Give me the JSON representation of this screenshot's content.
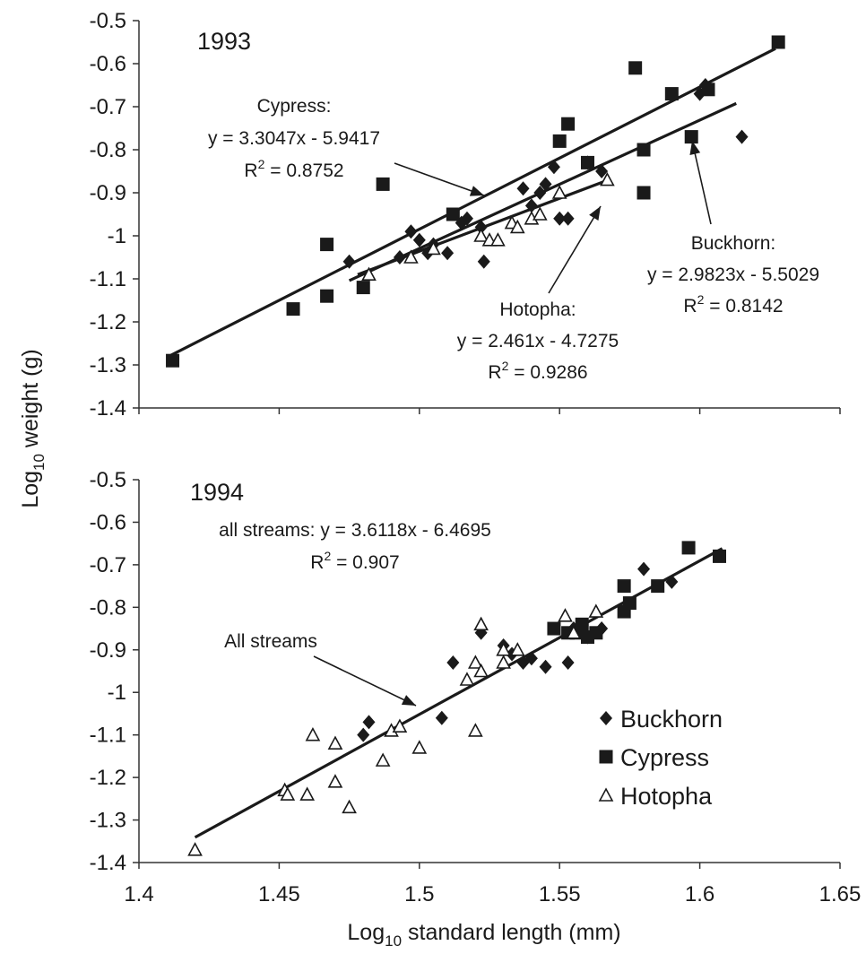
{
  "chart_data": {
    "type": "scatter",
    "ylabel": {
      "base": "Log",
      "sub": "10",
      "rest": " weight (g)"
    },
    "xlabel": {
      "base": "Log",
      "sub": "10",
      "rest": " standard length (mm)"
    },
    "xlim": [
      1.4,
      1.65
    ],
    "xticks": [
      "1.4",
      "1.45",
      "1.5",
      "1.55",
      "1.6",
      "1.65"
    ],
    "ylim": [
      -1.4,
      -0.5
    ],
    "yticks": [
      "-0.5",
      "-0.6",
      "-0.7",
      "-0.8",
      "-0.9",
      "-1",
      "-1.1",
      "-1.2",
      "-1.3",
      "-1.4"
    ],
    "legend": {
      "placement": "bottom-right of lower panel",
      "entries": [
        {
          "name": "Buckhorn",
          "marker": "diamond"
        },
        {
          "name": "Cypress",
          "marker": "square"
        },
        {
          "name": "Hotopha",
          "marker": "triangle-open"
        }
      ]
    },
    "panels": [
      {
        "title": "1993",
        "series": [
          {
            "name": "Buckhorn",
            "marker": "diamond",
            "points": [
              [
                1.475,
                -1.06
              ],
              [
                1.497,
                -0.99
              ],
              [
                1.493,
                -1.05
              ],
              [
                1.5,
                -1.01
              ],
              [
                1.503,
                -1.04
              ],
              [
                1.505,
                -1.02
              ],
              [
                1.51,
                -1.04
              ],
              [
                1.515,
                -0.97
              ],
              [
                1.517,
                -0.96
              ],
              [
                1.522,
                -0.98
              ],
              [
                1.523,
                -1.06
              ],
              [
                1.537,
                -0.89
              ],
              [
                1.54,
                -0.93
              ],
              [
                1.543,
                -0.9
              ],
              [
                1.545,
                -0.88
              ],
              [
                1.548,
                -0.84
              ],
              [
                1.55,
                -0.96
              ],
              [
                1.553,
                -0.96
              ],
              [
                1.56,
                -0.83
              ],
              [
                1.565,
                -0.85
              ],
              [
                1.6,
                -0.67
              ],
              [
                1.602,
                -0.65
              ],
              [
                1.615,
                -0.77
              ]
            ]
          },
          {
            "name": "Cypress",
            "marker": "square",
            "points": [
              [
                1.412,
                -1.29
              ],
              [
                1.455,
                -1.17
              ],
              [
                1.467,
                -1.02
              ],
              [
                1.467,
                -1.14
              ],
              [
                1.48,
                -1.12
              ],
              [
                1.487,
                -0.88
              ],
              [
                1.512,
                -0.95
              ],
              [
                1.55,
                -0.78
              ],
              [
                1.553,
                -0.74
              ],
              [
                1.56,
                -0.83
              ],
              [
                1.577,
                -0.61
              ],
              [
                1.58,
                -0.8
              ],
              [
                1.58,
                -0.9
              ],
              [
                1.59,
                -0.67
              ],
              [
                1.597,
                -0.77
              ],
              [
                1.603,
                -0.66
              ],
              [
                1.628,
                -0.55
              ]
            ]
          },
          {
            "name": "Hotopha",
            "marker": "triangle-open",
            "points": [
              [
                1.482,
                -1.09
              ],
              [
                1.497,
                -1.05
              ],
              [
                1.505,
                -1.03
              ],
              [
                1.522,
                -1.0
              ],
              [
                1.525,
                -1.01
              ],
              [
                1.528,
                -1.01
              ],
              [
                1.533,
                -0.97
              ],
              [
                1.535,
                -0.98
              ],
              [
                1.54,
                -0.96
              ],
              [
                1.543,
                -0.95
              ],
              [
                1.55,
                -0.9
              ],
              [
                1.567,
                -0.87
              ]
            ]
          }
        ],
        "fits": [
          {
            "name": "Cypress",
            "slope": 3.3047,
            "intercept": -5.9417,
            "x": [
              1.41,
              1.627
            ]
          },
          {
            "name": "Buckhorn",
            "slope": 2.9823,
            "intercept": -5.5029,
            "x": [
              1.475,
              1.613
            ]
          },
          {
            "name": "Hotopha",
            "slope": 2.461,
            "intercept": -4.7275,
            "x": [
              1.478,
              1.568
            ]
          }
        ],
        "annotations": [
          {
            "lines": [
              {
                "text": "Cypress:"
              },
              {
                "text": "y = 3.3047x - 5.9417"
              },
              {
                "text": "R",
                "sup": "2",
                "after": " = 0.8752"
              }
            ]
          },
          {
            "lines": [
              {
                "text": "Buckhorn:"
              },
              {
                "text": "y = 2.9823x - 5.5029"
              },
              {
                "text": "R",
                "sup": "2",
                "after": " = 0.8142"
              }
            ]
          },
          {
            "lines": [
              {
                "text": "Hotopha:"
              },
              {
                "text": "y = 2.461x - 4.7275"
              },
              {
                "text": "R",
                "sup": "2",
                "after": " = 0.9286"
              }
            ]
          }
        ]
      },
      {
        "title": "1994",
        "series": [
          {
            "name": "Buckhorn",
            "marker": "diamond",
            "points": [
              [
                1.48,
                -1.1
              ],
              [
                1.482,
                -1.07
              ],
              [
                1.508,
                -1.06
              ],
              [
                1.512,
                -0.93
              ],
              [
                1.522,
                -0.86
              ],
              [
                1.53,
                -0.89
              ],
              [
                1.533,
                -0.91
              ],
              [
                1.537,
                -0.93
              ],
              [
                1.54,
                -0.92
              ],
              [
                1.545,
                -0.94
              ],
              [
                1.553,
                -0.93
              ],
              [
                1.555,
                -0.85
              ],
              [
                1.56,
                -0.87
              ],
              [
                1.565,
                -0.85
              ],
              [
                1.58,
                -0.71
              ],
              [
                1.59,
                -0.74
              ]
            ]
          },
          {
            "name": "Cypress",
            "marker": "square",
            "points": [
              [
                1.548,
                -0.85
              ],
              [
                1.553,
                -0.86
              ],
              [
                1.556,
                -0.86
              ],
              [
                1.558,
                -0.84
              ],
              [
                1.56,
                -0.87
              ],
              [
                1.563,
                -0.86
              ],
              [
                1.573,
                -0.81
              ],
              [
                1.573,
                -0.75
              ],
              [
                1.575,
                -0.79
              ],
              [
                1.585,
                -0.75
              ],
              [
                1.596,
                -0.66
              ],
              [
                1.607,
                -0.68
              ]
            ]
          },
          {
            "name": "Hotopha",
            "marker": "triangle-open",
            "points": [
              [
                1.42,
                -1.37
              ],
              [
                1.452,
                -1.23
              ],
              [
                1.453,
                -1.24
              ],
              [
                1.46,
                -1.24
              ],
              [
                1.462,
                -1.1
              ],
              [
                1.47,
                -1.12
              ],
              [
                1.47,
                -1.21
              ],
              [
                1.475,
                -1.27
              ],
              [
                1.487,
                -1.16
              ],
              [
                1.49,
                -1.09
              ],
              [
                1.493,
                -1.08
              ],
              [
                1.5,
                -1.13
              ],
              [
                1.517,
                -0.97
              ],
              [
                1.52,
                -1.09
              ],
              [
                1.52,
                -0.93
              ],
              [
                1.522,
                -0.95
              ],
              [
                1.522,
                -0.84
              ],
              [
                1.53,
                -0.9
              ],
              [
                1.53,
                -0.93
              ],
              [
                1.535,
                -0.9
              ],
              [
                1.552,
                -0.82
              ],
              [
                1.555,
                -0.86
              ],
              [
                1.563,
                -0.81
              ]
            ]
          }
        ],
        "fits": [
          {
            "name": "All streams",
            "slope": 3.6118,
            "intercept": -6.4695,
            "x": [
              1.42,
              1.608
            ]
          }
        ],
        "annotations": [
          {
            "lines": [
              {
                "text": "all streams: y = 3.6118x - 6.4695"
              },
              {
                "text": "R",
                "sup": "2",
                "after": " = 0.907"
              }
            ]
          },
          {
            "lines": [
              {
                "text": "All streams"
              }
            ]
          }
        ]
      }
    ]
  }
}
